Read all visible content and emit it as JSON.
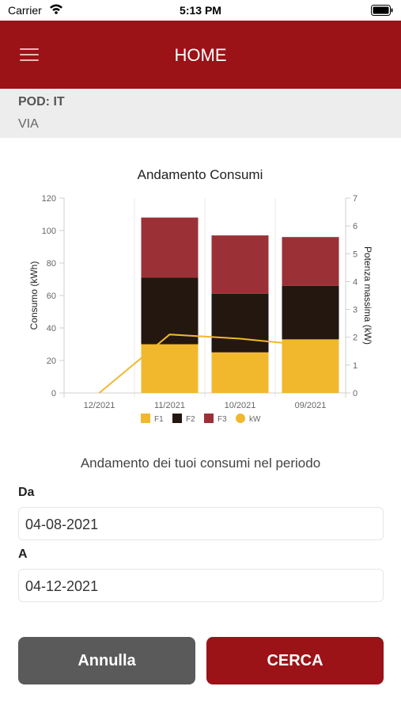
{
  "status_bar": {
    "carrier": "Carrier",
    "time": "5:13 PM"
  },
  "header": {
    "title": "HOME"
  },
  "info": {
    "pod": "POD: IT",
    "address": "VIA"
  },
  "chart_data": {
    "type": "bar",
    "title": "Andamento Consumi",
    "categories": [
      "12/2021",
      "11/2021",
      "10/2021",
      "09/2021"
    ],
    "ylabel": "Consumo (kWh)",
    "ylabel_right": "Potenza massima (kW)",
    "ylim": [
      0,
      120
    ],
    "ylim_right": [
      0,
      7
    ],
    "yticks": [
      "0",
      "20",
      "40",
      "60",
      "80",
      "100",
      "120"
    ],
    "yticks_right": [
      "0",
      "1",
      "2",
      "3",
      "4",
      "5",
      "6",
      "7"
    ],
    "stacked": true,
    "series": [
      {
        "name": "F1",
        "color": "#f1b82d",
        "values": [
          0,
          30,
          25,
          33
        ]
      },
      {
        "name": "F2",
        "color": "#231710",
        "values": [
          0,
          41,
          36,
          33
        ]
      },
      {
        "name": "F3",
        "color": "#9b3136",
        "values": [
          0,
          37,
          36,
          30
        ]
      }
    ],
    "line_series": {
      "name": "kW",
      "color": "#f1b82d",
      "values": [
        0,
        2.1,
        1.95,
        1.7
      ]
    },
    "legend": [
      "F1",
      "F2",
      "F3",
      "kW"
    ],
    "legend_position": "bottom",
    "grid": true
  },
  "period": {
    "text": "Andamento dei tuoi consumi nel periodo"
  },
  "from": {
    "label": "Da",
    "value": "04-08-2021"
  },
  "to": {
    "label": "A",
    "value": "04-12-2021"
  },
  "buttons": {
    "cancel": "Annulla",
    "search": "CERCA"
  },
  "colors": {
    "brand": "#9b1217",
    "cancel": "#5a5a5a",
    "panel": "#ededed"
  }
}
